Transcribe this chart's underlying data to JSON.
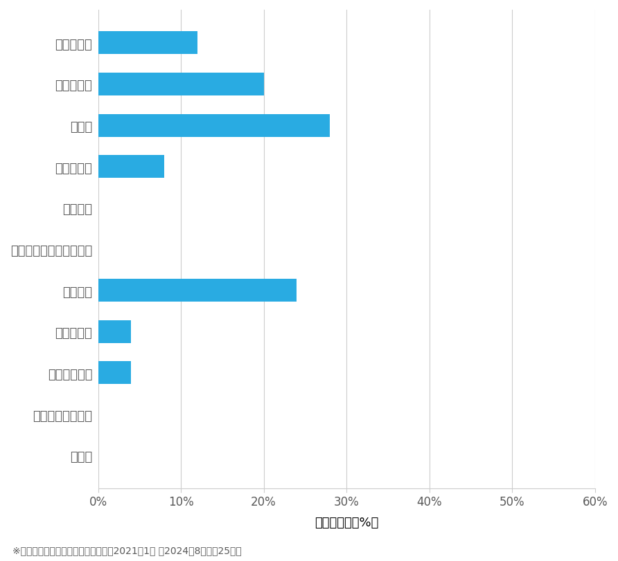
{
  "categories": [
    "玄関鍵開錠",
    "玄関鍵交換",
    "車開錠",
    "その他開錠",
    "車鍵作成",
    "イモビ付き国産車鍵作成",
    "金庫開錠",
    "玄関鍵作成",
    "その他鍵作成",
    "スーツケース開錠",
    "その他"
  ],
  "values": [
    12,
    20,
    28,
    8,
    0,
    0,
    24,
    4,
    4,
    0,
    0
  ],
  "bar_color": "#29ABE2",
  "background_color": "#FFFFFF",
  "xlabel": "件数の割合（%）",
  "xlim": [
    0,
    60
  ],
  "xticks": [
    0,
    10,
    20,
    30,
    40,
    50,
    60
  ],
  "xtick_labels": [
    "0%",
    "10%",
    "20%",
    "30%",
    "40%",
    "50%",
    "60%"
  ],
  "footnote": "※弊社受付の案件を対象に集計（期間2021年1月 〜2024年8月、計25件）",
  "grid_color": "#CCCCCC",
  "text_color": "#595959",
  "label_fontsize": 13,
  "tick_fontsize": 12,
  "footnote_fontsize": 10
}
